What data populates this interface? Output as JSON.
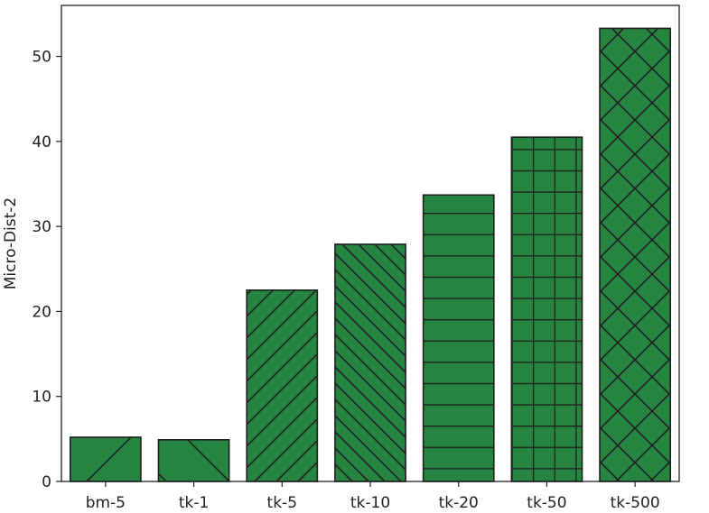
{
  "chart_data": {
    "type": "bar",
    "categories": [
      "bm-5",
      "tk-1",
      "tk-5",
      "tk-10",
      "tk-20",
      "tk-50",
      "tk-500"
    ],
    "values": [
      5.2,
      4.9,
      22.5,
      27.9,
      33.7,
      40.5,
      53.3
    ],
    "hatches": [
      "single-diagonal",
      "backslash",
      "slash",
      "dense-backslash",
      "horizontal",
      "grid",
      "crosshatch"
    ],
    "xlabel": "",
    "ylabel": "Micro-Dist-2",
    "ylim": [
      0,
      56
    ],
    "yticks": [
      0,
      10,
      20,
      30,
      40,
      50
    ],
    "grid": false,
    "bar_color": "#268540",
    "edge_color": "#1f1f1f"
  }
}
